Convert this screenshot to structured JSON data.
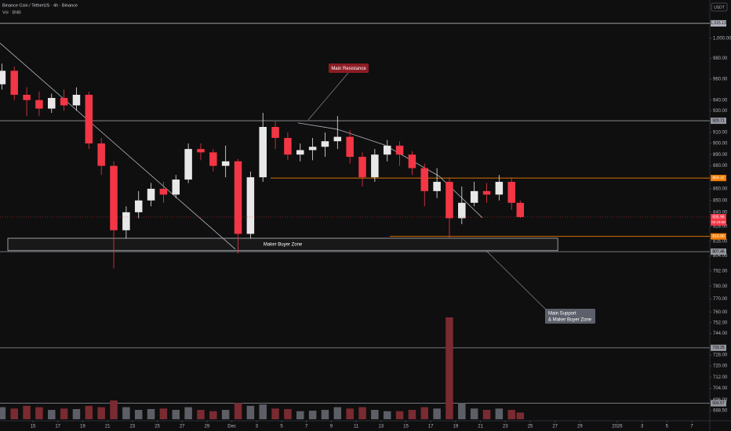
{
  "chart_data": {
    "type": "candlestick",
    "title": "Binance Coin / TetherUS · 4h · Binance",
    "subtitle": "Vol · BNB",
    "currency": "USDT",
    "log_scale": true,
    "up_color": "#e8e8e8",
    "down_color": "#f23645",
    "volume_up_color": "#5d5f66",
    "volume_down_color": "#7a2a31",
    "x": [
      12.5,
      13.5,
      14.5,
      15.5,
      16.5,
      17.5,
      18.5,
      19.5,
      20.5,
      21.5,
      22.5,
      23.5,
      24.5,
      25.5,
      26.5,
      27.5,
      28.5,
      29.5,
      30.5,
      31.5,
      32.5,
      33.5,
      34.5,
      35.5,
      36.5,
      37.5,
      38.5,
      39.5,
      40.5,
      41.5,
      42.5,
      43.5,
      44.5,
      45.5,
      46.5,
      47.5,
      48.5,
      49.5,
      50.5,
      51.5,
      52.5,
      53.5,
      54.2
    ],
    "open": [
      955,
      968,
      945,
      940,
      932,
      942,
      935,
      945,
      900,
      880,
      825,
      840,
      850,
      860,
      855,
      868,
      895,
      892,
      880,
      884,
      822,
      870,
      915,
      905,
      890,
      894,
      897,
      902,
      906,
      888,
      870,
      890,
      898,
      890,
      878,
      858,
      866,
      835,
      848,
      858,
      855,
      866,
      848
    ],
    "high": [
      975,
      972,
      952,
      948,
      946,
      950,
      952,
      948,
      905,
      884,
      845,
      858,
      865,
      866,
      872,
      900,
      900,
      895,
      898,
      886,
      875,
      928,
      920,
      910,
      900,
      905,
      910,
      925,
      912,
      892,
      895,
      903,
      902,
      893,
      882,
      878,
      870,
      862,
      866,
      865,
      872,
      870,
      850
    ],
    "low": [
      950,
      940,
      925,
      925,
      928,
      930,
      930,
      895,
      872,
      794,
      818,
      835,
      845,
      848,
      852,
      865,
      885,
      875,
      870,
      806,
      818,
      866,
      895,
      885,
      884,
      885,
      888,
      895,
      882,
      862,
      866,
      884,
      880,
      872,
      845,
      852,
      819,
      830,
      845,
      848,
      850,
      842,
      835
    ],
    "close": [
      968,
      945,
      940,
      932,
      942,
      935,
      945,
      900,
      880,
      825,
      840,
      850,
      860,
      855,
      868,
      895,
      892,
      880,
      884,
      822,
      870,
      915,
      905,
      890,
      894,
      897,
      902,
      906,
      888,
      870,
      890,
      898,
      890,
      878,
      858,
      866,
      835,
      848,
      858,
      855,
      866,
      848,
      836
    ],
    "volume": [
      45,
      40,
      50,
      45,
      35,
      40,
      38,
      50,
      45,
      70,
      45,
      35,
      38,
      40,
      35,
      45,
      35,
      30,
      35,
      60,
      50,
      55,
      40,
      38,
      30,
      32,
      35,
      45,
      40,
      45,
      35,
      30,
      30,
      35,
      45,
      40,
      380,
      60,
      40,
      35,
      40,
      35,
      25
    ],
    "xlim": [
      12.35,
      69.45
    ],
    "ylim": [
      681.5,
      1039.2
    ],
    "xticks": [
      {
        "value": 15,
        "label": "15"
      },
      {
        "value": 17,
        "label": "17"
      },
      {
        "value": 19,
        "label": "19"
      },
      {
        "value": 21,
        "label": "21"
      },
      {
        "value": 23,
        "label": "23"
      },
      {
        "value": 25,
        "label": "25"
      },
      {
        "value": 27,
        "label": "27"
      },
      {
        "value": 29,
        "label": "29"
      },
      {
        "value": 31,
        "label": "Dec"
      },
      {
        "value": 33,
        "label": "3"
      },
      {
        "value": 35,
        "label": "5"
      },
      {
        "value": 37,
        "label": "7"
      },
      {
        "value": 39,
        "label": "9"
      },
      {
        "value": 41,
        "label": "11"
      },
      {
        "value": 43,
        "label": "13"
      },
      {
        "value": 45,
        "label": "15"
      },
      {
        "value": 47,
        "label": "17"
      },
      {
        "value": 49,
        "label": "19"
      },
      {
        "value": 51,
        "label": "21"
      },
      {
        "value": 53,
        "label": "23"
      },
      {
        "value": 55,
        "label": "25"
      },
      {
        "value": 57,
        "label": "27"
      },
      {
        "value": 59,
        "label": "29"
      },
      {
        "value": 62,
        "label": "2026"
      },
      {
        "value": 64,
        "label": "3"
      },
      {
        "value": 66,
        "label": "5"
      },
      {
        "value": 68,
        "label": "7"
      }
    ],
    "yticks": [
      {
        "value": 1000,
        "label": "1,000.00"
      },
      {
        "value": 980,
        "label": "980.00"
      },
      {
        "value": 960,
        "label": "960.00"
      },
      {
        "value": 940,
        "label": "940.00"
      },
      {
        "value": 930,
        "label": "930.00"
      },
      {
        "value": 910,
        "label": "910.00"
      },
      {
        "value": 900,
        "label": "900.00"
      },
      {
        "value": 890,
        "label": "890.00"
      },
      {
        "value": 880,
        "label": "880.00"
      },
      {
        "value": 860,
        "label": "860.00"
      },
      {
        "value": 850,
        "label": "850.00"
      },
      {
        "value": 840,
        "label": "840.00"
      },
      {
        "value": 828,
        "label": "828.00"
      },
      {
        "value": 816,
        "label": "816.00"
      },
      {
        "value": 804,
        "label": "804.00"
      },
      {
        "value": 792,
        "label": "792.00"
      },
      {
        "value": 780,
        "label": "780.00"
      },
      {
        "value": 770,
        "label": "770.00"
      },
      {
        "value": 760,
        "label": "760.00"
      },
      {
        "value": 752,
        "label": "752.00"
      },
      {
        "value": 744,
        "label": "744.00"
      },
      {
        "value": 728,
        "label": "728.00"
      },
      {
        "value": 720,
        "label": "720.00"
      },
      {
        "value": 712,
        "label": "712.00"
      },
      {
        "value": 704,
        "label": "704.00"
      },
      {
        "value": 696,
        "label": "696.00"
      },
      {
        "value": 688.5,
        "label": "688.50"
      }
    ],
    "levels": [
      {
        "value": 1015.13,
        "label": "1,015.13",
        "color": "#b2b5be"
      },
      {
        "value": 920.71,
        "label": "920.71",
        "color": "#9598a1"
      },
      {
        "value": 869.32,
        "label": "869.32",
        "color": "#f57c00",
        "start": 34.12
      },
      {
        "value": 819.9,
        "label": "819.90",
        "color": "#f57c00",
        "start": 43.71
      },
      {
        "value": 807.46,
        "label": "807.46",
        "color": "#9598a1"
      },
      {
        "value": 733.25,
        "label": "733.25",
        "color": "#9598a1"
      },
      {
        "value": 693.57,
        "label": "693.57",
        "color": "#9598a1"
      }
    ],
    "last_price": {
      "value": 835.96,
      "label": "835.96",
      "countdown": "02:19:08",
      "color": "#f23645"
    },
    "trendline": {
      "x": [
        12.35,
        31.28
      ],
      "y": [
        995.3,
        809.5
      ]
    },
    "resistance_arc": {
      "x": [
        36.33,
        39.48,
        43.27,
        47.68,
        51.15
      ],
      "y": [
        918.7,
        912.9,
        898.7,
        870.9,
        835.4
      ]
    },
    "zone": {
      "label": "Maker Buyer Zone",
      "x": [
        12.98,
        57.22
      ],
      "y": [
        818.4,
        808.3
      ]
    },
    "annotations": [
      "Main Resistance",
      "Main Support",
      "& Maker Buyer Zone"
    ]
  }
}
